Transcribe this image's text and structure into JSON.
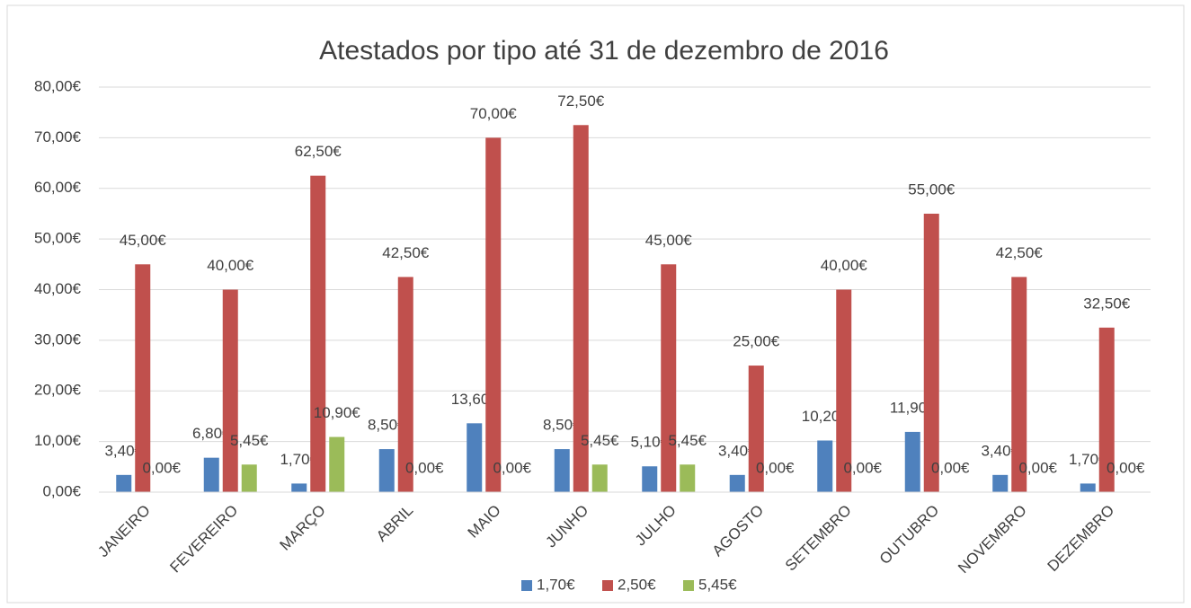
{
  "chart_data": {
    "type": "bar",
    "title": "Atestados por tipo até 31 de dezembro de 2016",
    "categories": [
      "JANEIRO",
      "FEVEREIRO",
      "MARÇO",
      "ABRIL",
      "MAIO",
      "JUNHO",
      "JULHO",
      "AGOSTO",
      "SETEMBRO",
      "OUTUBRO",
      "NOVEMBRO",
      "DEZEMBRO"
    ],
    "series": [
      {
        "name": "1,70€",
        "color": "#4f81bd",
        "values": [
          3.4,
          6.8,
          1.7,
          8.5,
          13.6,
          8.5,
          5.1,
          3.4,
          10.2,
          11.9,
          3.4,
          1.7
        ],
        "value_labels": [
          "3,40€",
          "6,80€",
          "1,70€",
          "8,50€",
          "13,60€",
          "8,50€",
          "5,10€",
          "3,40€",
          "10,20€",
          "11,90€",
          "3,40€",
          "1,70€"
        ]
      },
      {
        "name": "2,50€",
        "color": "#c0504d",
        "values": [
          45,
          40,
          62.5,
          42.5,
          70,
          72.5,
          45,
          25,
          40,
          55,
          42.5,
          32.5
        ],
        "value_labels": [
          "45,00€",
          "40,00€",
          "62,50€",
          "42,50€",
          "70,00€",
          "72,50€",
          "45,00€",
          "25,00€",
          "40,00€",
          "55,00€",
          "42,50€",
          "32,50€"
        ]
      },
      {
        "name": "5,45€",
        "color": "#9bbb59",
        "values": [
          0,
          5.45,
          10.9,
          0,
          0,
          5.45,
          5.45,
          0,
          0,
          0,
          0,
          0
        ],
        "value_labels": [
          "0,00€",
          "5,45€",
          "10,90€",
          "0,00€",
          "0,00€",
          "5,45€",
          "5,45€",
          "0,00€",
          "0,00€",
          "0,00€",
          "0,00€",
          "0,00€"
        ]
      }
    ],
    "ylim": [
      0,
      80
    ],
    "yticks": [
      {
        "value": 0,
        "label": "0,00€"
      },
      {
        "value": 10,
        "label": "10,00€"
      },
      {
        "value": 20,
        "label": "20,00€"
      },
      {
        "value": 30,
        "label": "30,00€"
      },
      {
        "value": 40,
        "label": "40,00€"
      },
      {
        "value": 50,
        "label": "50,00€"
      },
      {
        "value": 60,
        "label": "60,00€"
      },
      {
        "value": 70,
        "label": "70,00€"
      },
      {
        "value": 80,
        "label": "80,00€"
      }
    ],
    "grid": true,
    "legend": "bottom"
  }
}
